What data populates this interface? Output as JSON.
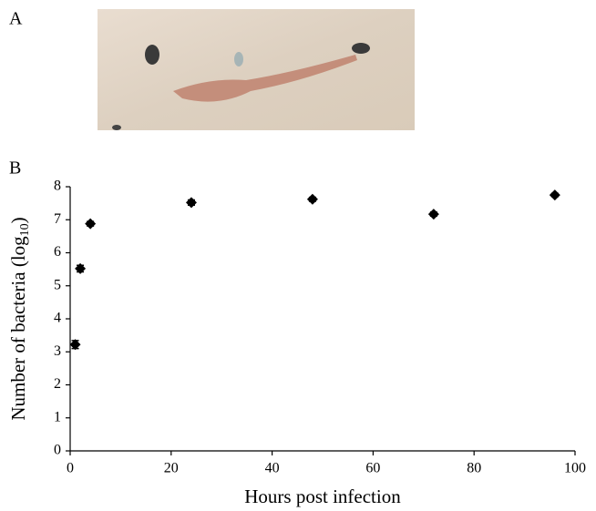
{
  "panel_labels": [
    "A",
    "B"
  ],
  "chart_data": {
    "type": "scatter",
    "xlabel": "Hours post infection",
    "ylabel": {
      "text": "Number of bacteria (log",
      "subscript": "10",
      "suffix": ")"
    },
    "x": [
      1,
      2,
      4,
      24,
      48,
      72,
      96
    ],
    "values": [
      3.22,
      5.52,
      6.88,
      7.52,
      7.62,
      7.17,
      7.75
    ],
    "errors": [
      0.12,
      0.1,
      0.07,
      0.08,
      0.06,
      0.06,
      0.05
    ],
    "color": "#000000",
    "xlim": [
      0,
      100
    ],
    "xticks": [
      0,
      20,
      40,
      60,
      80,
      100
    ],
    "ylim": [
      0,
      8
    ],
    "yticks": [
      0,
      1,
      2,
      3,
      4,
      5,
      6,
      7,
      8
    ],
    "grid": false
  }
}
